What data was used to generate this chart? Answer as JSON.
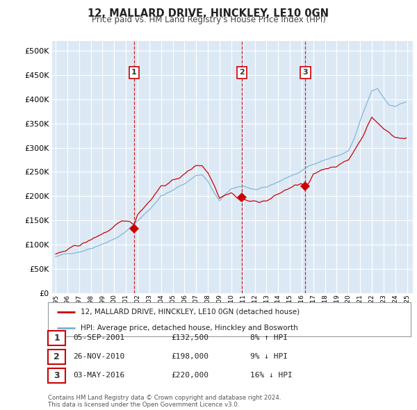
{
  "title": "12, MALLARD DRIVE, HINCKLEY, LE10 0GN",
  "subtitle": "Price paid vs. HM Land Registry's House Price Index (HPI)",
  "plot_bg": "#dce9f5",
  "fig_bg": "#ffffff",
  "grid_color": "#ffffff",
  "hpi_color": "#7ab0d4",
  "price_color": "#cc0000",
  "sales": [
    {
      "label": "1",
      "date": "05-SEP-2001",
      "price": 132500,
      "pct": "8% ↑ HPI",
      "x_year": 2001.7
    },
    {
      "label": "2",
      "date": "26-NOV-2010",
      "price": 198000,
      "pct": "9% ↓ HPI",
      "x_year": 2010.9
    },
    {
      "label": "3",
      "date": "03-MAY-2016",
      "price": 220000,
      "pct": "16% ↓ HPI",
      "x_year": 2016.33
    }
  ],
  "legend_label_price": "12, MALLARD DRIVE, HINCKLEY, LE10 0GN (detached house)",
  "legend_label_hpi": "HPI: Average price, detached house, Hinckley and Bosworth",
  "footnote": "Contains HM Land Registry data © Crown copyright and database right 2024.\nThis data is licensed under the Open Government Licence v3.0.",
  "ylim": [
    0,
    520000
  ],
  "yticks": [
    0,
    50000,
    100000,
    150000,
    200000,
    250000,
    300000,
    350000,
    400000,
    450000,
    500000
  ],
  "xmin": 1994.7,
  "xmax": 2025.5
}
